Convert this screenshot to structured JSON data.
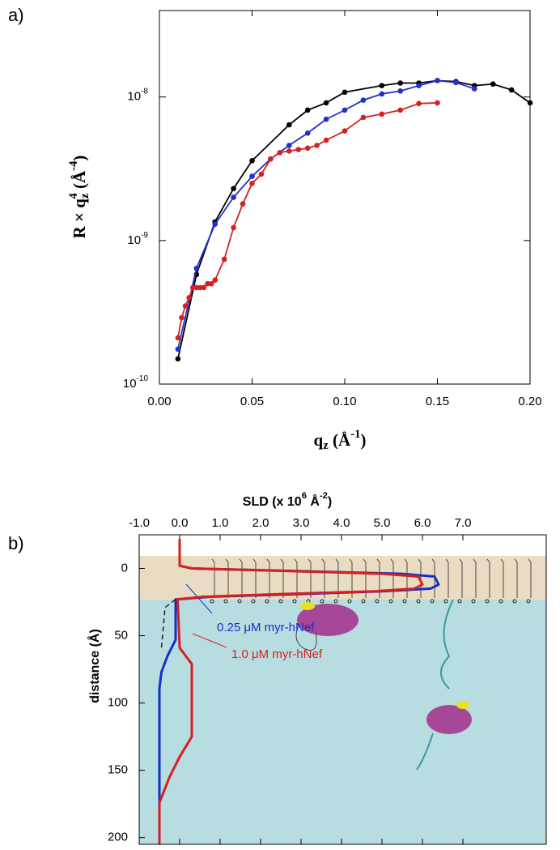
{
  "chart_data": [
    {
      "type": "scatter",
      "panel_label": "a)",
      "log_y": true,
      "lines": true,
      "xlabel": [
        "q",
        "z",
        " (Å",
        "-1",
        ")"
      ],
      "ylabel": [
        "R × q",
        "z",
        "4",
        " (Å",
        "-4",
        ")"
      ],
      "xlim": [
        0,
        0.2
      ],
      "ylim": [
        1e-10,
        4e-08
      ],
      "xticks": [
        {
          "value": 0,
          "label": "0.00"
        },
        {
          "value": 0.05,
          "label": "0.05"
        },
        {
          "value": 0.1,
          "label": "0.10"
        },
        {
          "value": 0.15,
          "label": "0.15"
        },
        {
          "value": 0.2,
          "label": "0.20"
        }
      ],
      "yticks": [
        {
          "value": 1e-10,
          "label": "10",
          "superscript": "-10"
        },
        {
          "value": 1e-09,
          "label": "10",
          "superscript": "-9"
        },
        {
          "value": 1e-08,
          "label": "10",
          "superscript": "-8"
        }
      ],
      "series": [
        {
          "color": "#000000",
          "x": [
            0.01,
            0.02,
            0.03,
            0.04,
            0.05,
            0.07,
            0.08,
            0.09,
            0.1,
            0.12,
            0.13,
            0.14,
            0.15,
            0.16,
            0.17,
            0.18,
            0.19,
            0.2
          ],
          "values": [
            1.5e-10,
            5.8e-10,
            1.35e-09,
            2.3e-09,
            3.6e-09,
            6.4e-09,
            8.1e-09,
            9.1e-09,
            1.08e-08,
            1.2e-08,
            1.25e-08,
            1.25e-08,
            1.3e-08,
            1.28e-08,
            1.2e-08,
            1.23e-08,
            1.12e-08,
            9.1e-09
          ]
        },
        {
          "color": "#1f2fd0",
          "x": [
            0.01,
            0.02,
            0.03,
            0.04,
            0.05,
            0.06,
            0.07,
            0.08,
            0.09,
            0.1,
            0.11,
            0.12,
            0.13,
            0.14,
            0.15,
            0.16,
            0.17
          ],
          "values": [
            1.75e-10,
            6.4e-10,
            1.3e-09,
            2e-09,
            2.8e-09,
            3.7e-09,
            4.6e-09,
            5.6e-09,
            7e-09,
            8.1e-09,
            9.5e-09,
            1.05e-08,
            1.1e-08,
            1.2e-08,
            1.3e-08,
            1.26e-08,
            1.14e-08
          ]
        },
        {
          "color": "#d42020",
          "x": [
            0.01,
            0.012,
            0.014,
            0.016,
            0.018,
            0.02,
            0.022,
            0.024,
            0.026,
            0.028,
            0.03,
            0.035,
            0.04,
            0.045,
            0.05,
            0.055,
            0.06,
            0.065,
            0.07,
            0.075,
            0.08,
            0.085,
            0.09,
            0.1,
            0.11,
            0.12,
            0.13,
            0.14,
            0.15
          ],
          "values": [
            2.1e-10,
            2.9e-10,
            3.5e-10,
            4e-10,
            4.7e-10,
            4.7e-10,
            4.7e-10,
            4.7e-10,
            5e-10,
            5e-10,
            5.3e-10,
            7.4e-10,
            1.23e-09,
            1.8e-09,
            2.5e-09,
            2.9e-09,
            3.7e-09,
            4.1e-09,
            4.2e-09,
            4.3e-09,
            4.4e-09,
            4.6e-09,
            5e-09,
            5.8e-09,
            7.2e-09,
            7.6e-09,
            8.1e-09,
            9e-09,
            9.1e-09
          ]
        }
      ]
    },
    {
      "type": "line",
      "panel_label": "b)",
      "y_inverted": true,
      "xlabel": [
        "SLD  (x 10",
        "6",
        "  Å",
        "-2",
        ")"
      ],
      "ylabel": "distance  (Å)",
      "xlim": [
        -1,
        9.06
      ],
      "ylim": [
        -25,
        205
      ],
      "xticks": [
        {
          "value": -1,
          "label": "-1.0"
        },
        {
          "value": 0,
          "label": "0.0"
        },
        {
          "value": 1,
          "label": "1.0"
        },
        {
          "value": 2,
          "label": "2.0"
        },
        {
          "value": 3,
          "label": "3.0"
        },
        {
          "value": 4,
          "label": "4.0"
        },
        {
          "value": 5,
          "label": "5.0"
        },
        {
          "value": 6,
          "label": "6.0"
        },
        {
          "value": 7,
          "label": "7.0"
        }
      ],
      "yticks": [
        0,
        50,
        100,
        150,
        200
      ],
      "series": [
        {
          "name": "0.25 μM myr-hNef",
          "color": "#1030c8",
          "distance": [
            -22,
            -2,
            0,
            2,
            4,
            6,
            12,
            15,
            17,
            19,
            21,
            23,
            53,
            65,
            77,
            89,
            205
          ],
          "values": [
            0,
            0,
            0.3,
            3.0,
            5.5,
            6.3,
            6.4,
            6.2,
            5.0,
            3.0,
            0.8,
            -0.1,
            -0.1,
            -0.3,
            -0.45,
            -0.5,
            -0.5
          ]
        },
        {
          "name": "1.0 μM myr-hNef",
          "color": "#d42020",
          "distance": [
            -22,
            -2,
            0,
            2,
            4,
            6,
            12,
            15,
            17,
            19,
            21,
            23,
            59,
            65,
            71,
            125,
            140,
            155,
            174,
            205
          ],
          "values": [
            0,
            0,
            0.3,
            2.8,
            5.0,
            5.9,
            6.0,
            5.8,
            4.8,
            2.5,
            0.6,
            -0.05,
            0,
            0.15,
            0.3,
            0.3,
            0,
            -0.25,
            -0.5,
            -0.5
          ]
        },
        {
          "color": "#222222",
          "dashed": true,
          "distance": [
            23,
            29,
            59
          ],
          "values": [
            -0.1,
            -0.36,
            -0.45
          ]
        }
      ]
    }
  ]
}
